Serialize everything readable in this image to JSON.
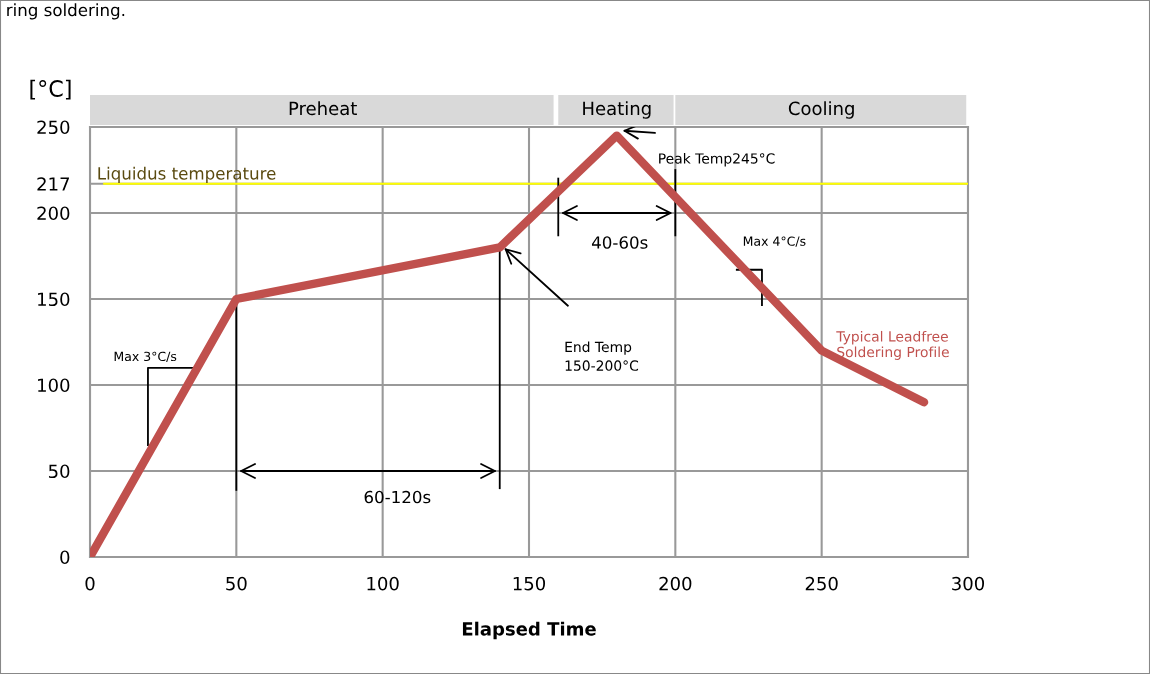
{
  "chart_data": {
    "type": "line",
    "xlabel": "Elapsed Time",
    "ylabel": "[°C]",
    "x": [
      0,
      50,
      140,
      180,
      250,
      285
    ],
    "series": [
      {
        "name": "Typical Leadfree\nSoldering Profile",
        "color": "#c0504d",
        "values": [
          0,
          150,
          180,
          245,
          120,
          90
        ]
      }
    ],
    "xlim": [
      0,
      300
    ],
    "xticks": [
      0,
      50,
      100,
      150,
      200,
      250,
      300
    ],
    "ylim": [
      0,
      250
    ],
    "yticks": [
      0,
      50,
      100,
      150,
      200,
      217,
      250
    ],
    "grid": true,
    "legend": false,
    "marker": "none",
    "line_style": "solid",
    "ref_lines": [
      {
        "axis": "y",
        "value": 217,
        "label": "Liquidus temperature",
        "color": "#ffff00"
      }
    ],
    "annotations": [
      "Preheat",
      "Heating",
      "Cooling",
      "ring soldering.",
      "Peak Temp245°C",
      "40-60s",
      "Max 4°C/s",
      "End Temp\n150-200°C",
      "Max 3°C/s",
      "60-120s"
    ]
  }
}
